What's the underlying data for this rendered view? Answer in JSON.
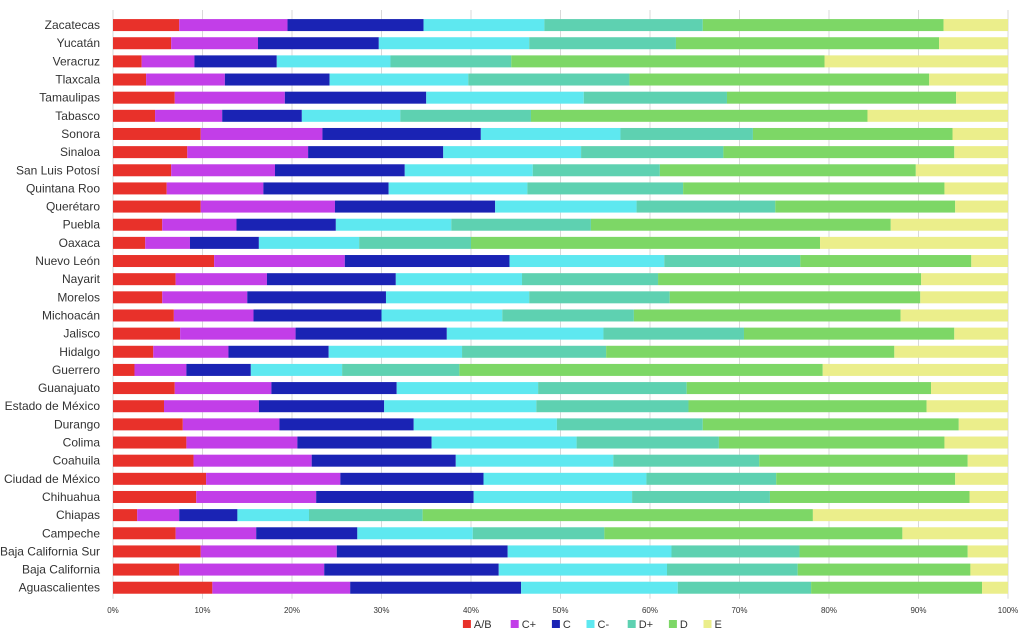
{
  "chart_data": {
    "type": "bar",
    "orientation": "horizontal",
    "stacked": true,
    "normalized_percent": true,
    "xlim": [
      0,
      100
    ],
    "xticks": [
      "0%",
      "10%",
      "20%",
      "30%",
      "40%",
      "50%",
      "60%",
      "70%",
      "80%",
      "90%",
      "100%"
    ],
    "grid": true,
    "legend_position": "bottom",
    "categories": [
      "Zacatecas",
      "Yucatán",
      "Veracruz",
      "Tlaxcala",
      "Tamaulipas",
      "Tabasco",
      "Sonora",
      "Sinaloa",
      "San Luis Potosí",
      "Quintana Roo",
      "Querétaro",
      "Puebla",
      "Oaxaca",
      "Nuevo León",
      "Nayarit",
      "Morelos",
      "Michoacán",
      "Jalisco",
      "Hidalgo",
      "Guerrero",
      "Guanajuato",
      "Estado de México",
      "Durango",
      "Colima",
      "Coahuila",
      "Ciudad de México",
      "Chihuahua",
      "Chiapas",
      "Campeche",
      "Baja California Sur",
      "Baja California",
      "Aguascalientes"
    ],
    "series": [
      {
        "name": "A/B",
        "color": "#e8312a",
        "values": [
          7.4,
          6.5,
          3.2,
          3.7,
          6.9,
          4.7,
          9.8,
          8.3,
          6.5,
          6.0,
          9.8,
          5.5,
          3.6,
          11.3,
          7.0,
          5.5,
          6.8,
          7.5,
          4.5,
          2.4,
          6.9,
          5.7,
          7.8,
          8.2,
          9.0,
          10.4,
          9.3,
          2.7,
          7.0,
          9.8,
          7.4,
          11.1
        ]
      },
      {
        "name": "C+",
        "color": "#c23ee8",
        "values": [
          12.1,
          9.7,
          5.9,
          8.8,
          12.3,
          7.5,
          13.6,
          13.5,
          11.6,
          10.8,
          15.0,
          8.3,
          5.0,
          14.6,
          10.2,
          9.5,
          8.9,
          12.9,
          8.4,
          5.8,
          10.8,
          10.6,
          10.8,
          12.4,
          13.2,
          15.0,
          13.4,
          4.7,
          9.0,
          15.2,
          16.2,
          15.4
        ]
      },
      {
        "name": "C",
        "color": "#1a23b4",
        "values": [
          15.2,
          13.5,
          9.2,
          11.7,
          15.8,
          8.9,
          17.7,
          15.1,
          14.5,
          14.0,
          17.9,
          11.1,
          7.7,
          18.4,
          14.4,
          15.5,
          14.3,
          16.9,
          11.2,
          7.2,
          14.0,
          14.0,
          15.0,
          15.0,
          16.1,
          16.0,
          17.6,
          6.5,
          11.3,
          19.1,
          19.5,
          19.1
        ]
      },
      {
        "name": "C-",
        "color": "#5ee8f0",
        "values": [
          13.5,
          16.8,
          12.7,
          15.5,
          17.6,
          11.0,
          15.6,
          15.4,
          14.3,
          15.5,
          15.8,
          12.9,
          11.2,
          17.3,
          14.1,
          16.0,
          13.5,
          17.5,
          14.9,
          10.2,
          15.8,
          17.0,
          16.0,
          16.2,
          17.6,
          18.2,
          17.7,
          8.0,
          12.9,
          18.3,
          18.8,
          17.5
        ]
      },
      {
        "name": "D+",
        "color": "#5ed1b1",
        "values": [
          17.7,
          16.4,
          13.5,
          18.0,
          16.0,
          14.6,
          14.8,
          15.9,
          14.2,
          17.4,
          15.5,
          15.6,
          12.5,
          15.2,
          15.2,
          15.7,
          14.7,
          15.7,
          16.1,
          13.1,
          16.6,
          17.0,
          16.3,
          15.9,
          16.3,
          14.5,
          15.4,
          12.7,
          14.7,
          14.3,
          14.6,
          14.9
        ]
      },
      {
        "name": "D",
        "color": "#7dd766",
        "values": [
          26.9,
          29.4,
          35.0,
          33.5,
          25.6,
          37.6,
          22.3,
          25.8,
          28.6,
          29.2,
          20.1,
          33.5,
          39.0,
          19.1,
          29.4,
          28.0,
          29.8,
          23.5,
          32.2,
          40.6,
          27.3,
          26.6,
          28.6,
          25.2,
          23.3,
          20.0,
          22.3,
          43.6,
          33.3,
          18.8,
          19.3,
          19.1
        ]
      },
      {
        "name": "E",
        "color": "#ebee8b",
        "values": [
          7.2,
          7.7,
          20.5,
          8.8,
          5.8,
          15.7,
          6.2,
          6.0,
          10.3,
          7.1,
          5.9,
          13.1,
          21.0,
          4.1,
          9.7,
          9.8,
          12.0,
          6.0,
          12.7,
          20.7,
          8.6,
          9.1,
          5.5,
          7.1,
          4.5,
          5.9,
          4.3,
          21.8,
          11.8,
          4.5,
          4.2,
          2.9
        ]
      }
    ]
  }
}
